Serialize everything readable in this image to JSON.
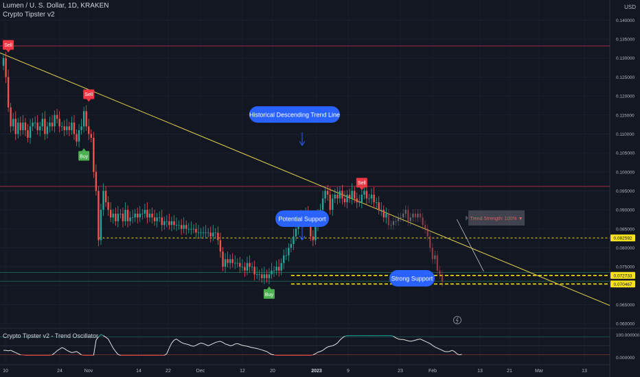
{
  "header": {
    "symbol_line": "Lumen / U. S. Dollar, 1D, KRAKEN",
    "indicator_name": "Crypto Tipster v2",
    "currency": "USD"
  },
  "oscillator": {
    "title": "Crypto Tipster v2 - Trend Oscillator",
    "scale_labels": [
      "100.000000",
      "0.000000"
    ],
    "values": [
      30,
      30,
      28,
      30,
      25,
      20,
      15,
      10,
      10,
      8,
      8,
      8,
      8,
      8,
      8,
      8,
      8,
      8,
      8,
      8,
      10,
      18,
      28,
      35,
      42,
      38,
      30,
      25,
      20,
      22,
      25,
      18,
      10,
      8,
      8,
      8,
      8,
      8,
      75,
      90,
      100,
      95,
      88,
      80,
      60,
      40,
      25,
      12,
      8,
      8,
      8,
      8,
      8,
      8,
      8,
      8,
      8,
      8,
      8,
      8,
      8,
      8,
      8,
      8,
      8,
      8,
      8,
      15,
      40,
      62,
      75,
      80,
      72,
      65,
      60,
      58,
      55,
      50,
      48,
      52,
      58,
      62,
      60,
      55,
      50,
      55,
      60,
      65,
      68,
      70,
      65,
      58,
      55,
      50,
      52,
      58,
      60,
      56,
      52,
      50,
      48,
      45,
      42,
      40,
      38,
      35,
      32,
      28,
      25,
      18,
      12,
      10,
      8,
      8,
      8,
      8,
      8,
      8,
      8,
      8,
      8,
      8,
      8,
      8,
      8,
      8,
      8,
      10,
      15,
      22,
      25,
      30,
      38,
      45,
      48,
      50,
      55,
      62,
      75,
      85,
      92,
      95,
      95,
      95,
      95,
      95,
      95,
      95,
      95,
      95,
      95,
      95,
      95,
      95,
      95,
      95,
      95,
      95,
      95,
      95,
      92,
      85,
      80,
      78,
      78,
      75,
      72,
      70,
      72,
      75,
      78,
      80,
      75,
      70,
      65,
      60,
      52,
      45,
      40,
      35,
      30,
      25,
      24,
      25,
      30,
      25,
      15,
      10,
      12
    ]
  },
  "annotations": {
    "historical_trend": "Historical Descending Trend Line",
    "potential_support": "Potential Support",
    "strong_support": "Strong Support",
    "trend_strength": "Trend Strength: 100% ▼",
    "sell_label": "Sell",
    "buy_label": "Buy"
  },
  "price_badges": {
    "upper": "0.082592",
    "mid": "0.072733",
    "lower": "0.070467"
  },
  "colors": {
    "background": "#131722",
    "up": "#26a69a",
    "down": "#ef5350",
    "trend_line": "#d4c34a",
    "support_line": "#f5e11d",
    "callout": "#2962ff",
    "buy": "#4caf50",
    "sell": "#f23645",
    "resistance": "#a3294a"
  },
  "chart_data": {
    "type": "candlestick",
    "y_unit": "USD",
    "y_ticks": [
      "0.140000",
      "0.135000",
      "0.130000",
      "0.125000",
      "0.120000",
      "0.115000",
      "0.110000",
      "0.105000",
      "0.100000",
      "0.095000",
      "0.090000",
      "0.085000",
      "0.080000",
      "0.075000",
      "0.070000",
      "0.065000",
      "0.060000"
    ],
    "x_ticks": [
      "10",
      "24",
      "Nov",
      "14",
      "22",
      "Dec",
      "12",
      "20",
      "2023",
      "9",
      "23",
      "Feb",
      "13",
      "21",
      "Mar",
      "13"
    ],
    "ylim": [
      0.0595,
      0.1435
    ],
    "close": [
      0.13,
      0.125,
      0.117,
      0.112,
      0.114,
      0.11,
      0.113,
      0.111,
      0.113,
      0.111,
      0.109,
      0.112,
      0.113,
      0.113,
      0.111,
      0.112,
      0.114,
      0.11,
      0.112,
      0.113,
      0.112,
      0.115,
      0.114,
      0.112,
      0.112,
      0.111,
      0.112,
      0.111,
      0.113,
      0.11,
      0.108,
      0.111,
      0.112,
      0.116,
      0.112,
      0.11,
      0.109,
      0.1,
      0.095,
      0.082,
      0.09,
      0.095,
      0.092,
      0.09,
      0.088,
      0.089,
      0.087,
      0.089,
      0.089,
      0.087,
      0.09,
      0.087,
      0.088,
      0.088,
      0.089,
      0.088,
      0.089,
      0.089,
      0.09,
      0.088,
      0.089,
      0.088,
      0.087,
      0.088,
      0.088,
      0.086,
      0.087,
      0.087,
      0.086,
      0.087,
      0.086,
      0.086,
      0.086,
      0.085,
      0.086,
      0.085,
      0.085,
      0.085,
      0.085,
      0.084,
      0.084,
      0.084,
      0.084,
      0.084,
      0.084,
      0.083,
      0.084,
      0.084,
      0.082,
      0.079,
      0.075,
      0.077,
      0.076,
      0.077,
      0.076,
      0.076,
      0.076,
      0.075,
      0.075,
      0.074,
      0.076,
      0.075,
      0.075,
      0.073,
      0.073,
      0.073,
      0.072,
      0.073,
      0.072,
      0.073,
      0.074,
      0.074,
      0.075,
      0.074,
      0.076,
      0.078,
      0.078,
      0.08,
      0.081,
      0.083,
      0.085,
      0.087,
      0.088,
      0.087,
      0.089,
      0.088,
      0.083,
      0.082,
      0.086,
      0.089,
      0.09,
      0.093,
      0.095,
      0.094,
      0.09,
      0.093,
      0.094,
      0.093,
      0.095,
      0.093,
      0.092,
      0.094,
      0.093,
      0.095,
      0.093,
      0.092,
      0.092,
      0.094,
      0.095,
      0.093,
      0.093,
      0.094,
      0.092,
      0.092,
      0.09,
      0.09,
      0.088,
      0.089,
      0.086,
      0.086,
      0.087,
      0.087,
      0.088,
      0.088,
      0.089,
      0.09,
      0.087,
      0.088,
      0.089,
      0.088,
      0.089,
      0.088,
      0.086,
      0.085,
      0.083,
      0.08,
      0.077,
      0.078,
      0.074,
      0.073,
      0.071
    ],
    "series": [
      {
        "name": "Trend line",
        "points": [
          [
            0,
            0.131
          ],
          [
            186,
            0.0815
          ]
        ]
      },
      {
        "name": "Support",
        "y": 0.0826
      },
      {
        "name": "Support",
        "y": 0.07273
      },
      {
        "name": "Support",
        "y": 0.07047
      },
      {
        "name": "Resistance",
        "y": 0.1332
      },
      {
        "name": "Resistance",
        "y": 0.0962
      },
      {
        "name": "Support",
        "y": 0.0712
      }
    ],
    "signals": [
      {
        "type": "Sell",
        "bar": 2,
        "price": 0.1322
      },
      {
        "type": "Sell",
        "bar": 35,
        "price": 0.1192
      },
      {
        "type": "Buy",
        "bar": 33,
        "price": 0.1055
      },
      {
        "type": "Buy",
        "bar": 109,
        "price": 0.0691
      },
      {
        "type": "Sell",
        "bar": 147,
        "price": 0.0959
      }
    ]
  }
}
